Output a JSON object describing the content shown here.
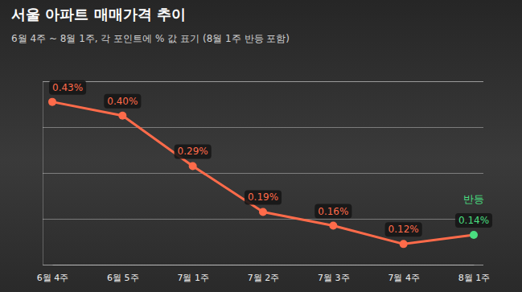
{
  "chart_data": {
    "type": "line",
    "title": "서울 아파트 매매가격 추이",
    "subtitle": "6월 4주 ~ 8월 1주, 각 포인트에 % 값 표기 (8월 1주 반등 포함)",
    "categories": [
      "6월 4주",
      "6월 5주",
      "7월 1주",
      "7월 2주",
      "7월 3주",
      "7월 4주",
      "8월 1주"
    ],
    "values": [
      0.43,
      0.4,
      0.29,
      0.19,
      0.16,
      0.12,
      0.14
    ],
    "value_labels": [
      "0.43%",
      "0.40%",
      "0.29%",
      "0.19%",
      "0.16%",
      "0.12%",
      "0.14%"
    ],
    "color": "#ff6b4a",
    "colors": [
      "#ff6b4a",
      "#ff6b4a",
      "#ff6b4a",
      "#ff6b4a",
      "#ff6b4a",
      "#ff6b4a",
      "#4ade80"
    ],
    "ylim": [
      0.075,
      0.475
    ],
    "yticks": [
      0.075,
      0.175,
      0.275,
      0.375,
      0.475
    ],
    "grid": true,
    "data_labels": true,
    "tick_labels": "x",
    "marker": "circle",
    "line_style": "solid",
    "annotations": [
      {
        "text": "반등",
        "x": "8월 1주"
      }
    ]
  }
}
